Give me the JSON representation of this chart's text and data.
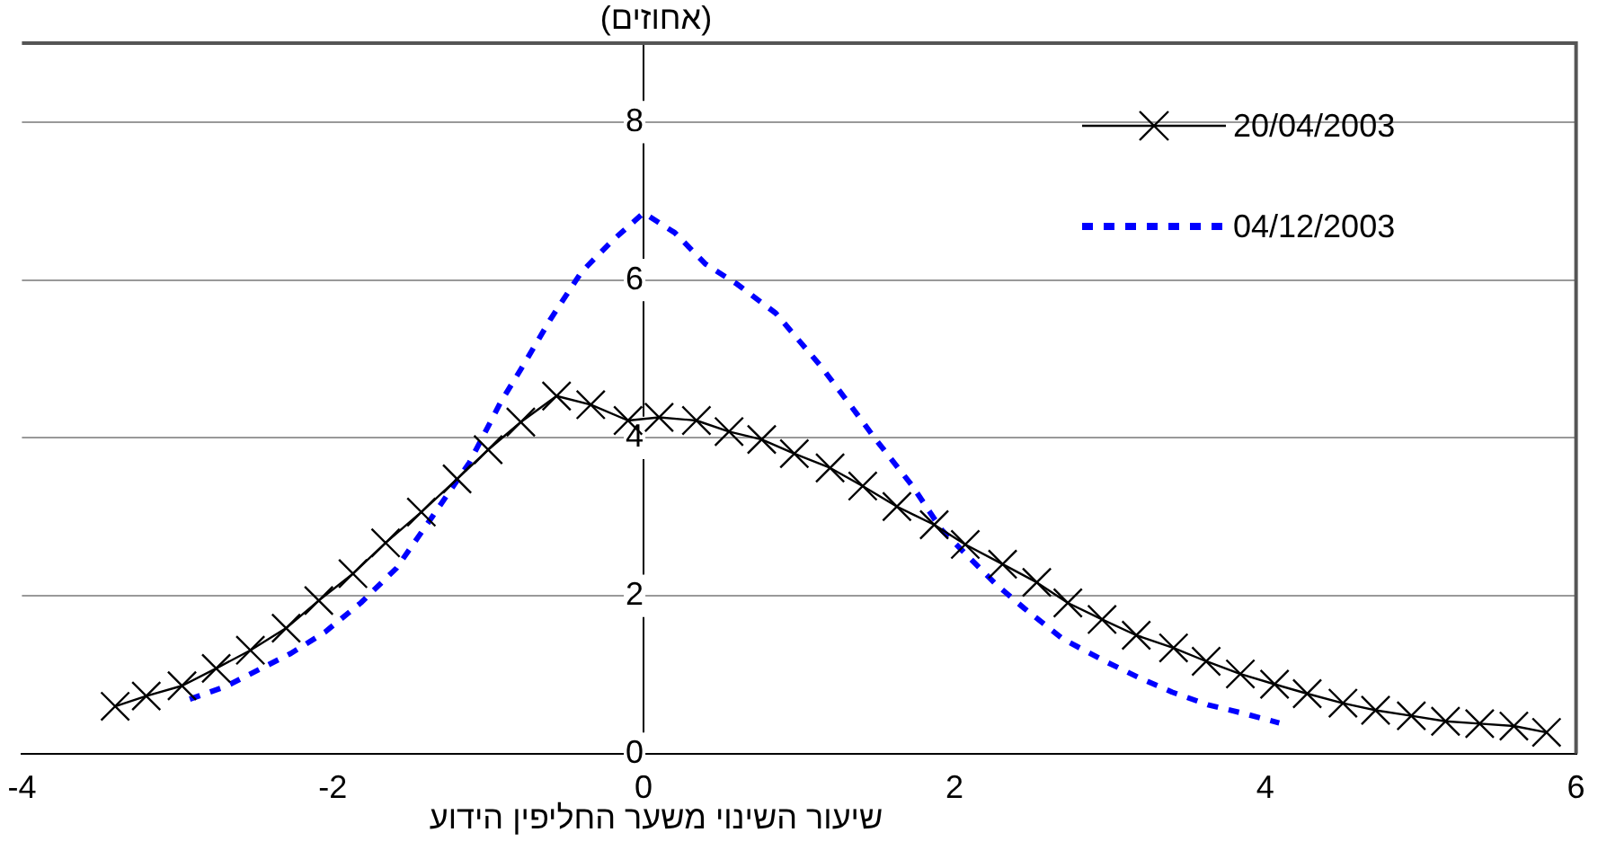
{
  "chart_data": {
    "type": "line",
    "title": "(אחוזים)",
    "xlabel": "שיעור השינוי משער החליפין הידוע",
    "xlim": [
      -4,
      6
    ],
    "xticks": [
      -4,
      -2,
      0,
      2,
      4,
      6
    ],
    "ylim": [
      0,
      9
    ],
    "yticks": [
      0,
      2,
      4,
      6,
      8
    ],
    "grid": "y",
    "legend": "top right",
    "series": [
      {
        "name": "20/04/2003",
        "color": "#000000",
        "marker": "cross",
        "line_style": "solid",
        "x": [
          -3.4,
          -3.2,
          -2.97,
          -2.75,
          -2.53,
          -2.3,
          -2.09,
          -1.87,
          -1.66,
          -1.43,
          -1.2,
          -1.0,
          -0.79,
          -0.56,
          -0.34,
          -0.1,
          0.1,
          0.34,
          0.55,
          0.76,
          0.97,
          1.2,
          1.41,
          1.63,
          1.87,
          2.07,
          2.31,
          2.53,
          2.73,
          2.95,
          3.17,
          3.41,
          3.62,
          3.84,
          4.06,
          4.27,
          4.5,
          4.71,
          4.94,
          5.16,
          5.38,
          5.6,
          5.81
        ],
        "values": [
          0.6,
          0.73,
          0.86,
          1.08,
          1.31,
          1.59,
          1.94,
          2.28,
          2.67,
          3.06,
          3.48,
          3.85,
          4.2,
          4.53,
          4.42,
          4.22,
          4.26,
          4.22,
          4.08,
          3.98,
          3.8,
          3.62,
          3.39,
          3.13,
          2.9,
          2.65,
          2.4,
          2.17,
          1.91,
          1.7,
          1.5,
          1.34,
          1.17,
          1.01,
          0.88,
          0.76,
          0.64,
          0.55,
          0.48,
          0.41,
          0.38,
          0.35,
          0.27
        ]
      },
      {
        "name": "04/12/2003",
        "color": "#0000ff",
        "marker": "none",
        "line_style": "dashed",
        "x": [
          -2.92,
          -2.69,
          -2.27,
          -2.05,
          -1.82,
          -1.59,
          -1.36,
          -1.12,
          -0.92,
          -0.78,
          -0.6,
          -0.4,
          -0.2,
          0,
          0.2,
          0.4,
          0.6,
          0.85,
          1.14,
          1.37,
          1.49,
          1.73,
          1.92,
          2.27,
          2.45,
          2.7,
          2.97,
          3.18,
          3.4,
          3.63,
          3.86,
          4.09
        ],
        "values": [
          0.69,
          0.85,
          1.27,
          1.54,
          1.91,
          2.35,
          3.0,
          3.69,
          4.45,
          4.9,
          5.5,
          6.1,
          6.5,
          6.85,
          6.6,
          6.2,
          5.95,
          5.58,
          4.91,
          4.31,
          3.99,
          3.39,
          2.83,
          2.14,
          1.84,
          1.45,
          1.17,
          0.97,
          0.78,
          0.62,
          0.51,
          0.39
        ]
      }
    ]
  }
}
